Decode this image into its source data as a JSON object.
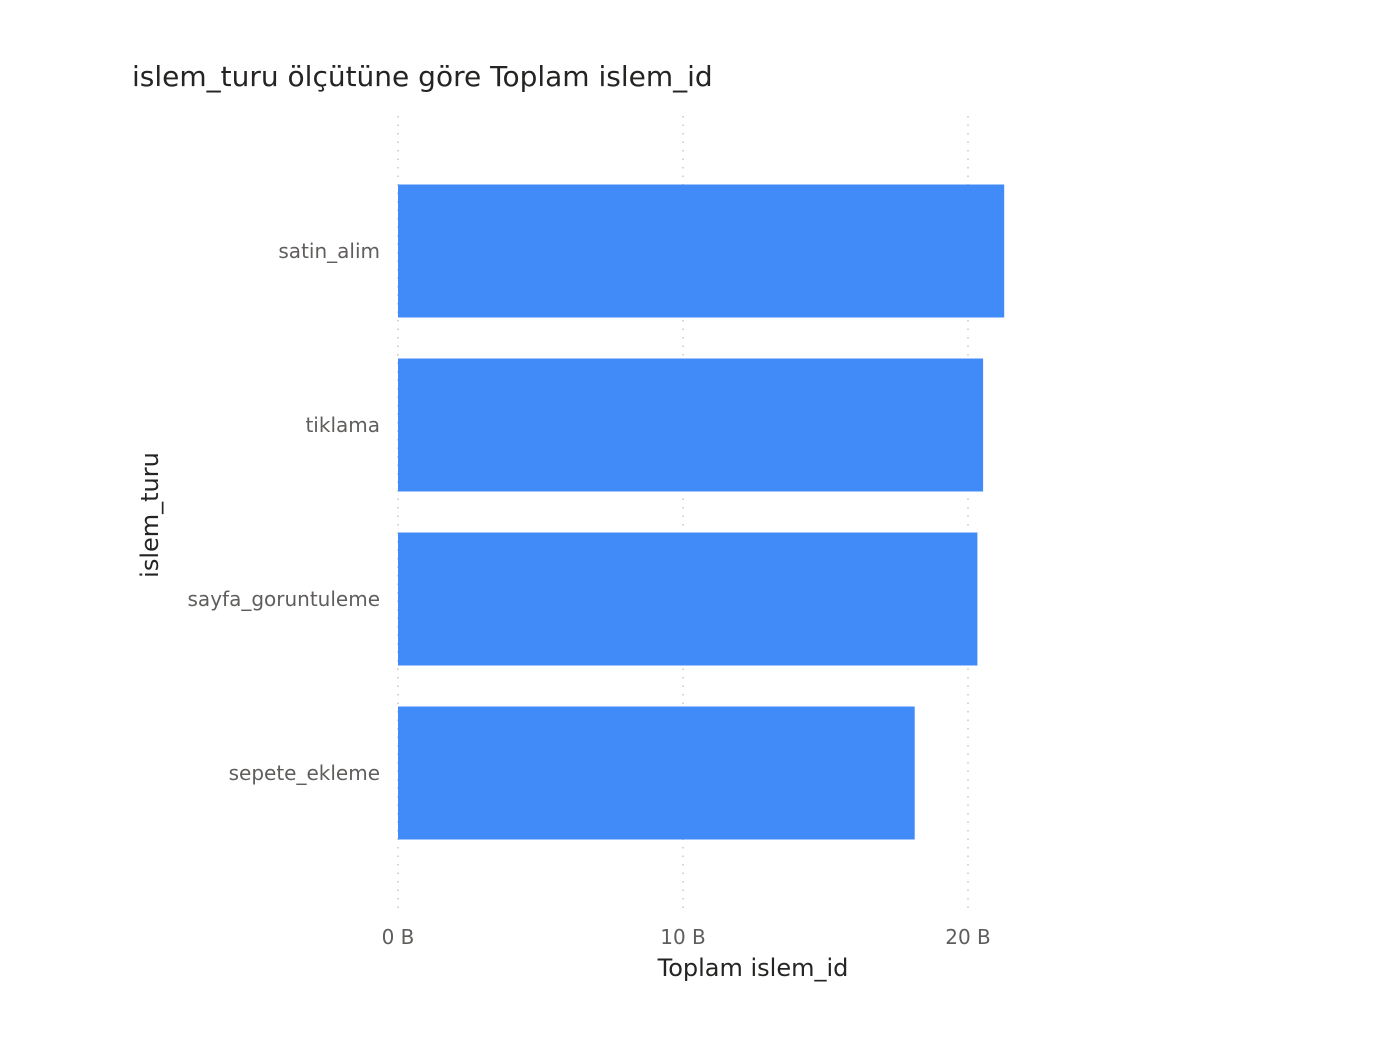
{
  "chart_data": {
    "type": "bar",
    "orientation": "horizontal",
    "title": "islem_turu ölçütüne göre Toplam islem_id",
    "xlabel": "Toplam islem_id",
    "ylabel": "islem_turu",
    "categories": [
      "satin_alim",
      "tiklama",
      "sayfa_goruntuleme",
      "sepete_ekleme"
    ],
    "values": [
      21.27,
      20.53,
      20.33,
      18.13
    ],
    "value_unit": "B",
    "xlim": [
      0,
      27.5
    ],
    "xticks": [
      {
        "value": 0,
        "label": "0 B"
      },
      {
        "value": 10,
        "label": "10 B"
      },
      {
        "value": 20,
        "label": "20 B"
      }
    ],
    "grid": "vertical-dotted",
    "legend": "none",
    "bar_color": "#418bf8"
  }
}
